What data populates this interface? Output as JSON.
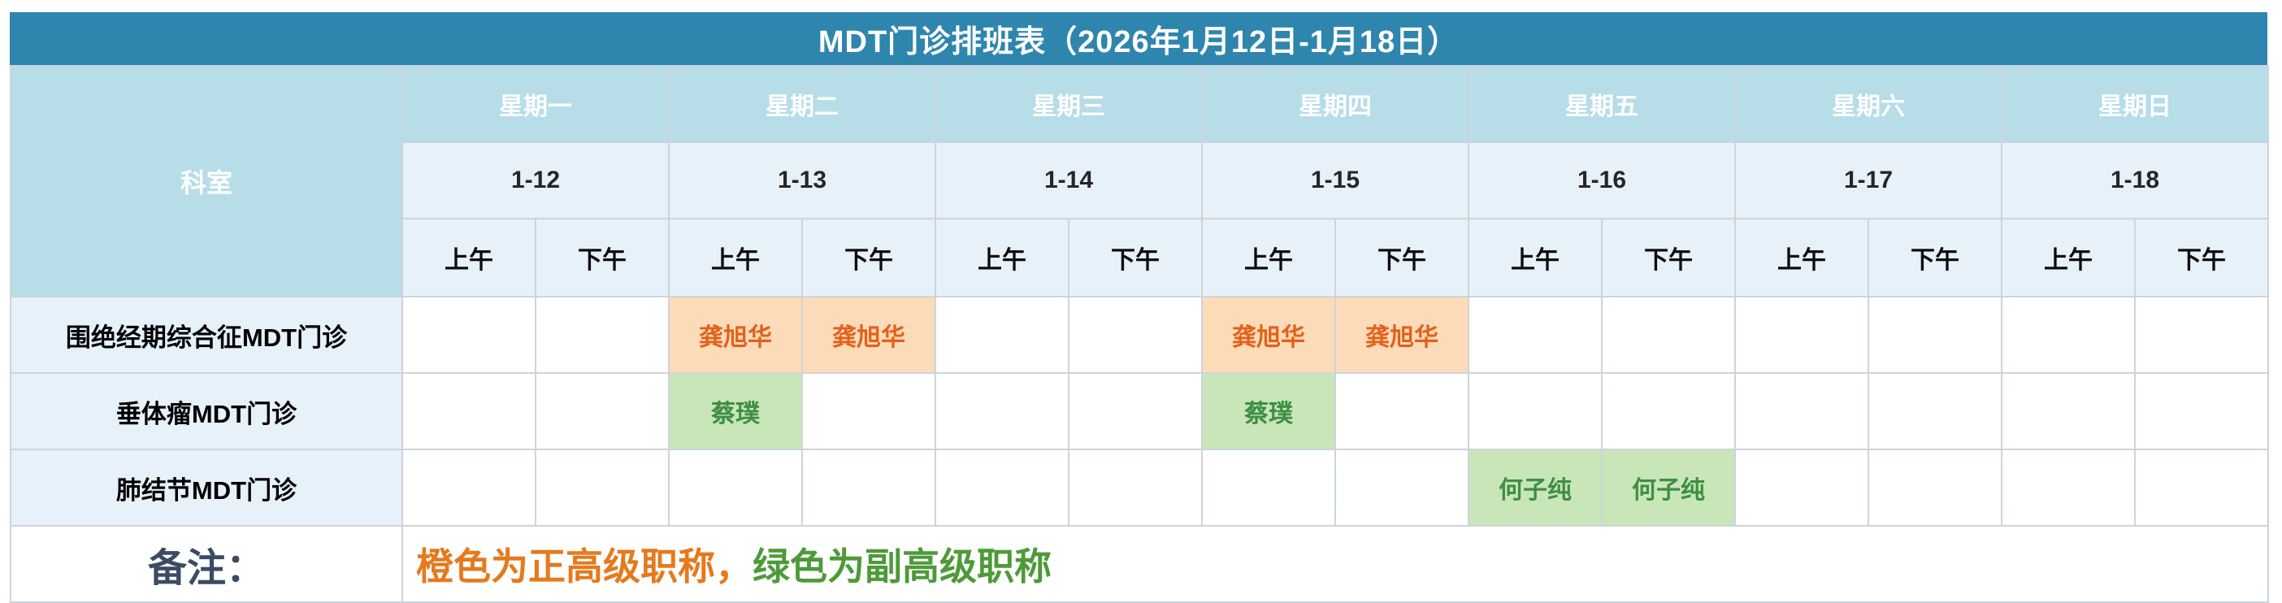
{
  "title": "MDT门诊排班表（2026年1月12日-1月18日）",
  "colors": {
    "title_bar_bg": "#2E86AE",
    "title_text": "#FFFFFF",
    "header_bg": "#B7DDE9",
    "header_text": "#FFFFFF",
    "subheader_bg": "#E6F1FA",
    "grid_line": "#CDD4D9",
    "senior_cell_bg": "#FCDBB9",
    "senior_text": "#E2611B",
    "associate_cell_bg": "#C9E6B9",
    "associate_text": "#3E8F44",
    "note_label_text": "#3B4B63",
    "note_orange": "#E57A1D",
    "note_green": "#4E9A39"
  },
  "table": {
    "corner_label": "科室",
    "am_label": "上午",
    "pm_label": "下午",
    "days": [
      {
        "weekday": "星期一",
        "date": "1-12"
      },
      {
        "weekday": "星期二",
        "date": "1-13"
      },
      {
        "weekday": "星期三",
        "date": "1-14"
      },
      {
        "weekday": "星期四",
        "date": "1-15"
      },
      {
        "weekday": "星期五",
        "date": "1-16"
      },
      {
        "weekday": "星期六",
        "date": "1-17"
      },
      {
        "weekday": "星期日",
        "date": "1-18"
      }
    ],
    "rows": [
      {
        "department": "围绝经期综合征MDT门诊",
        "cells": [
          null,
          null,
          {
            "name": "龚旭华",
            "style": "orange",
            "level": "正高级职称"
          },
          {
            "name": "龚旭华",
            "style": "orange",
            "level": "正高级职称"
          },
          null,
          null,
          {
            "name": "龚旭华",
            "style": "orange",
            "level": "正高级职称"
          },
          {
            "name": "龚旭华",
            "style": "orange",
            "level": "正高级职称"
          },
          null,
          null,
          null,
          null,
          null,
          null
        ]
      },
      {
        "department": "垂体瘤MDT门诊",
        "cells": [
          null,
          null,
          {
            "name": "蔡璞",
            "style": "green",
            "level": "副高级职称"
          },
          null,
          null,
          null,
          {
            "name": "蔡璞",
            "style": "green",
            "level": "副高级职称"
          },
          null,
          null,
          null,
          null,
          null,
          null,
          null
        ]
      },
      {
        "department": "肺结节MDT门诊",
        "cells": [
          null,
          null,
          null,
          null,
          null,
          null,
          null,
          null,
          {
            "name": "何子纯",
            "style": "green",
            "level": "副高级职称"
          },
          {
            "name": "何子纯",
            "style": "green",
            "level": "副高级职称"
          },
          null,
          null,
          null,
          null
        ]
      }
    ],
    "note_label": "备注：",
    "note_parts": [
      {
        "text": "橙色为正高级职称，",
        "color": "#E57A1D"
      },
      {
        "text": "绿色为副高级职称",
        "color": "#4E9A39"
      }
    ]
  }
}
